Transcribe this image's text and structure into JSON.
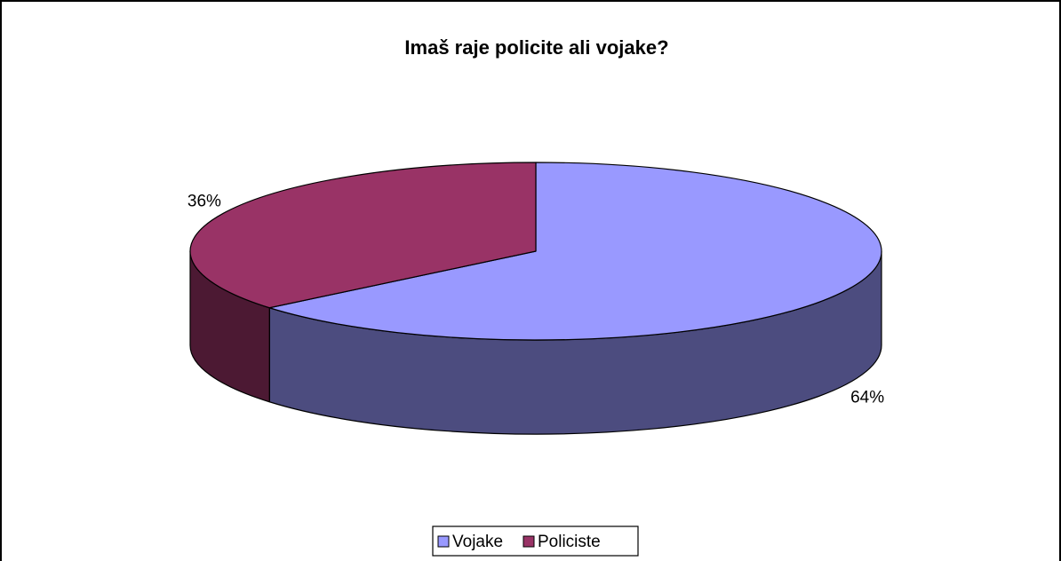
{
  "chart_data": {
    "type": "pie",
    "title": "Imaš raje policite ali vojake?",
    "categories": [
      "Vojake",
      "Policiste"
    ],
    "values": [
      64,
      36
    ],
    "data_labels": [
      "64%",
      "36%"
    ],
    "style": "3d-pie",
    "legend_position": "bottom",
    "grid": false,
    "colors": {
      "top": [
        "#9999ff",
        "#993366"
      ],
      "side": [
        "#4c4c7f",
        "#4c1933"
      ],
      "outline": "#000000",
      "background": "#ffffff"
    }
  }
}
